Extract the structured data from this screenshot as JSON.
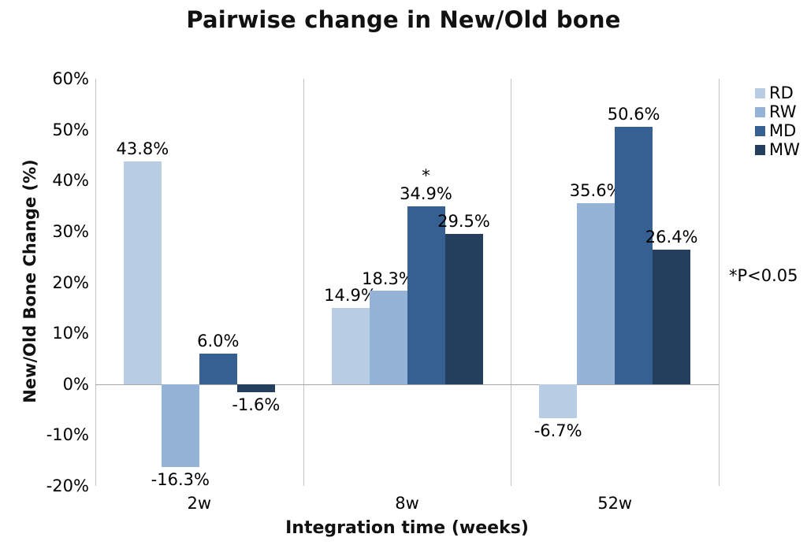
{
  "chart_data": {
    "type": "bar",
    "title": "Pairwise change in New/Old bone",
    "xlabel": "Integration time (weeks)",
    "ylabel": "New/Old Bone Change (%)",
    "ylim": [
      -20,
      60
    ],
    "ytick_step": 10,
    "ytick_labels": [
      "60%",
      "50%",
      "40%",
      "30%",
      "20%",
      "10%",
      "0%",
      "-10%",
      "-20%"
    ],
    "categories": [
      "2w",
      "8w",
      "52w"
    ],
    "series": [
      {
        "name": "RD",
        "color": "#b8cce4",
        "values": [
          43.8,
          14.9,
          -6.7
        ],
        "labels": [
          "43.8%",
          "14.9%",
          "-6.7%"
        ]
      },
      {
        "name": "RW",
        "color": "#95b3d7",
        "values": [
          -16.3,
          18.3,
          35.6
        ],
        "labels": [
          "-16.3%",
          "18.3%",
          "35.6%"
        ]
      },
      {
        "name": "MD",
        "color": "#366092",
        "values": [
          6.0,
          34.9,
          50.6
        ],
        "labels": [
          "6.0%",
          "34.9%",
          "50.6%"
        ]
      },
      {
        "name": "MW",
        "color": "#243f5e",
        "values": [
          -1.6,
          29.5,
          26.4
        ],
        "labels": [
          "-1.6%",
          "29.5%",
          "26.4%"
        ]
      }
    ],
    "point_annotations": [
      {
        "series": "MD",
        "category": "8w",
        "text": "*"
      }
    ],
    "legend": {
      "position": "right",
      "entries": [
        "RD",
        "RW",
        "MD",
        "MW"
      ]
    },
    "grid": "vertical category separators and zero line only",
    "annotation": "*P<0.05"
  }
}
